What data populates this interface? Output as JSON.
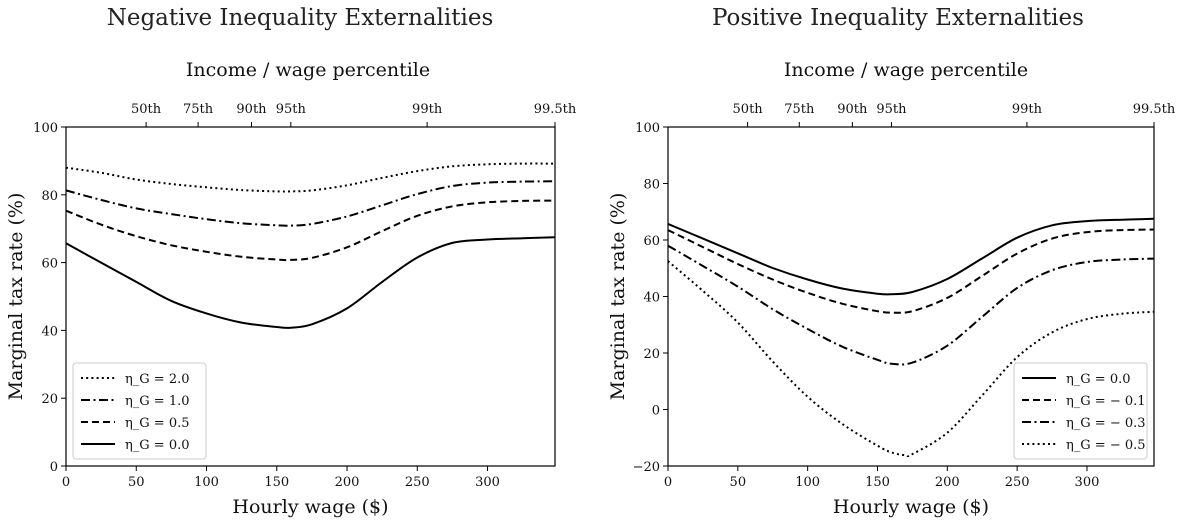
{
  "chart_data": [
    {
      "type": "line",
      "title": "Negative Inequality Externalities",
      "top_axis_label": "Income / wage percentile",
      "top_ticks": [
        {
          "x": 57,
          "label": "50th"
        },
        {
          "x": 94,
          "label": "75th"
        },
        {
          "x": 132,
          "label": "90th"
        },
        {
          "x": 160,
          "label": "95th"
        },
        {
          "x": 257,
          "label": "99th"
        },
        {
          "x": 348,
          "label": "99.5th"
        }
      ],
      "xlabel": "Hourly wage ($)",
      "ylabel": "Marginal tax rate (%)",
      "xlim": [
        0,
        348
      ],
      "ylim": [
        0,
        100
      ],
      "xticks": [
        0,
        50,
        100,
        150,
        200,
        250,
        300
      ],
      "yticks": [
        0,
        20,
        40,
        60,
        80,
        100
      ],
      "legend_position": "lower-left",
      "series": [
        {
          "name": "η_G = 2.0",
          "dash": "dotted",
          "x": [
            0,
            25,
            50,
            75,
            100,
            125,
            150,
            160,
            175,
            200,
            225,
            250,
            275,
            300,
            325,
            348
          ],
          "y": [
            88,
            86.5,
            84.5,
            83.2,
            82.2,
            81.4,
            81,
            81,
            81.3,
            82.8,
            85,
            87,
            88.4,
            89,
            89.2,
            89.2
          ]
        },
        {
          "name": "η_G = 1.0",
          "dash": "dashdot",
          "x": [
            0,
            25,
            50,
            75,
            100,
            125,
            150,
            160,
            175,
            200,
            225,
            250,
            275,
            300,
            325,
            348
          ],
          "y": [
            81.3,
            78.5,
            76,
            74.3,
            72.8,
            71.6,
            71,
            70.9,
            71.4,
            73.6,
            76.9,
            80.2,
            82.6,
            83.6,
            83.9,
            84
          ]
        },
        {
          "name": "η_G = 0.5",
          "dash": "dashed",
          "x": [
            0,
            25,
            50,
            75,
            100,
            125,
            150,
            160,
            175,
            200,
            225,
            250,
            275,
            300,
            325,
            348
          ],
          "y": [
            75.3,
            71.2,
            67.8,
            65.1,
            63.2,
            61.7,
            60.9,
            60.8,
            61.4,
            64.5,
            69.3,
            73.8,
            76.6,
            77.8,
            78.2,
            78.3
          ]
        },
        {
          "name": "η_G = 0.0",
          "dash": "solid",
          "x": [
            0,
            25,
            50,
            75,
            100,
            125,
            150,
            160,
            175,
            200,
            225,
            250,
            275,
            300,
            325,
            348
          ],
          "y": [
            65.7,
            60,
            54.3,
            48.7,
            45,
            42.3,
            41,
            40.8,
            41.8,
            46.5,
            54.3,
            61.5,
            65.8,
            66.8,
            67.2,
            67.5
          ]
        }
      ]
    },
    {
      "type": "line",
      "title": "Positive Inequality Externalities",
      "top_axis_label": "Income / wage percentile",
      "top_ticks": [
        {
          "x": 57,
          "label": "50th"
        },
        {
          "x": 94,
          "label": "75th"
        },
        {
          "x": 132,
          "label": "90th"
        },
        {
          "x": 160,
          "label": "95th"
        },
        {
          "x": 257,
          "label": "99th"
        },
        {
          "x": 348,
          "label": "99.5th"
        }
      ],
      "xlabel": "Hourly wage ($)",
      "ylabel": "Marginal tax rate (%)",
      "xlim": [
        0,
        348
      ],
      "ylim": [
        -20,
        100
      ],
      "xticks": [
        0,
        50,
        100,
        150,
        200,
        250,
        300
      ],
      "yticks": [
        -20,
        0,
        20,
        40,
        60,
        80,
        100
      ],
      "legend_position": "lower-right",
      "series": [
        {
          "name": "η_G = 0.0",
          "dash": "solid",
          "x": [
            0,
            25,
            50,
            75,
            100,
            125,
            150,
            160,
            175,
            200,
            225,
            250,
            275,
            300,
            325,
            348
          ],
          "y": [
            65.7,
            60.5,
            55.3,
            50.1,
            46,
            42.8,
            41,
            40.8,
            41.6,
            46.2,
            53.5,
            60.8,
            65.2,
            66.7,
            67.2,
            67.5
          ]
        },
        {
          "name": "η_G = − 0.1",
          "dash": "dashed",
          "x": [
            0,
            25,
            50,
            75,
            100,
            125,
            150,
            160,
            175,
            200,
            225,
            250,
            275,
            300,
            325,
            348
          ],
          "y": [
            63.5,
            57.5,
            51.5,
            46,
            41.3,
            37.4,
            34.8,
            34.3,
            34.8,
            39.5,
            47.3,
            55.2,
            60.5,
            62.8,
            63.5,
            63.7
          ]
        },
        {
          "name": "η_G = − 0.3",
          "dash": "dashdot",
          "x": [
            0,
            25,
            50,
            75,
            100,
            125,
            150,
            160,
            175,
            200,
            225,
            250,
            275,
            300,
            325,
            348
          ],
          "y": [
            58,
            50.8,
            43.5,
            35.5,
            28.5,
            22.2,
            17.6,
            16.2,
            16.6,
            22.6,
            32.8,
            43,
            49.3,
            52.2,
            53.1,
            53.4
          ]
        },
        {
          "name": "η_G = − 0.5",
          "dash": "dotted",
          "x": [
            0,
            25,
            50,
            75,
            100,
            125,
            150,
            160,
            170,
            175,
            200,
            225,
            250,
            275,
            300,
            325,
            348
          ],
          "y": [
            52.5,
            42,
            30.8,
            17,
            4.5,
            -5.2,
            -12.8,
            -15.2,
            -16.2,
            -15.8,
            -8.2,
            5,
            18.5,
            27.3,
            32,
            33.9,
            34.6
          ]
        }
      ]
    }
  ]
}
